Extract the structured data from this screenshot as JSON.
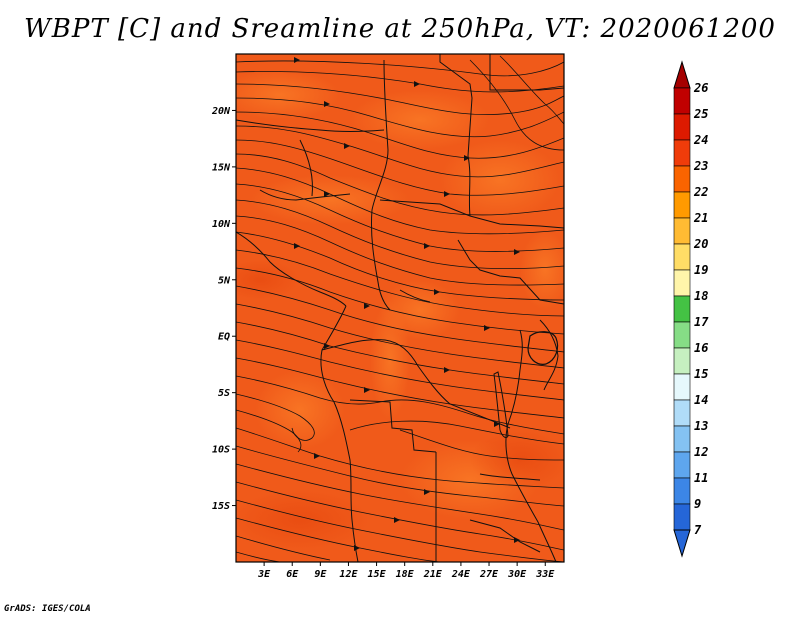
{
  "title": "WBPT [C] and Sreamline at 250hPa, VT: 2020061200",
  "credit": "GrADS: IGES/COLA",
  "map": {
    "fill_color": "#f05a1a",
    "lat_labels": [
      {
        "value": 20,
        "label": "20N"
      },
      {
        "value": 15,
        "label": "15N"
      },
      {
        "value": 10,
        "label": "10N"
      },
      {
        "value": 5,
        "label": "5N"
      },
      {
        "value": 0,
        "label": "EQ"
      },
      {
        "value": -5,
        "label": "5S"
      },
      {
        "value": -10,
        "label": "10S"
      },
      {
        "value": -15,
        "label": "15S"
      }
    ],
    "lon_labels": [
      {
        "value": 3,
        "label": "3E"
      },
      {
        "value": 6,
        "label": "6E"
      },
      {
        "value": 9,
        "label": "9E"
      },
      {
        "value": 12,
        "label": "12E"
      },
      {
        "value": 15,
        "label": "15E"
      },
      {
        "value": 18,
        "label": "18E"
      },
      {
        "value": 21,
        "label": "21E"
      },
      {
        "value": 24,
        "label": "24E"
      },
      {
        "value": 27,
        "label": "27E"
      },
      {
        "value": 30,
        "label": "30E"
      },
      {
        "value": 33,
        "label": "33E"
      }
    ],
    "lat_range": [
      -20,
      25
    ],
    "lon_range": [
      0,
      35
    ]
  },
  "colorbar": {
    "levels": [
      {
        "label": "26",
        "color": "#a50000"
      },
      {
        "label": "25",
        "color": "#c00000"
      },
      {
        "label": "24",
        "color": "#dd1a00"
      },
      {
        "label": "23",
        "color": "#f03c0a"
      },
      {
        "label": "22",
        "color": "#fa6400"
      },
      {
        "label": "21",
        "color": "#ff9a00"
      },
      {
        "label": "20",
        "color": "#ffbb33"
      },
      {
        "label": "19",
        "color": "#ffdd66"
      },
      {
        "label": "18",
        "color": "#fff5aa"
      },
      {
        "label": "17",
        "color": "#44c244"
      },
      {
        "label": "16",
        "color": "#86dd86"
      },
      {
        "label": "15",
        "color": "#c6f0c0"
      },
      {
        "label": "14",
        "color": "#e6f8fc"
      },
      {
        "label": "13",
        "color": "#b0dcf8"
      },
      {
        "label": "12",
        "color": "#84c2f2"
      },
      {
        "label": "11",
        "color": "#5ea6ee"
      },
      {
        "label": "9",
        "color": "#3c86e6"
      },
      {
        "label": "7",
        "color": "#2566d8"
      }
    ]
  }
}
